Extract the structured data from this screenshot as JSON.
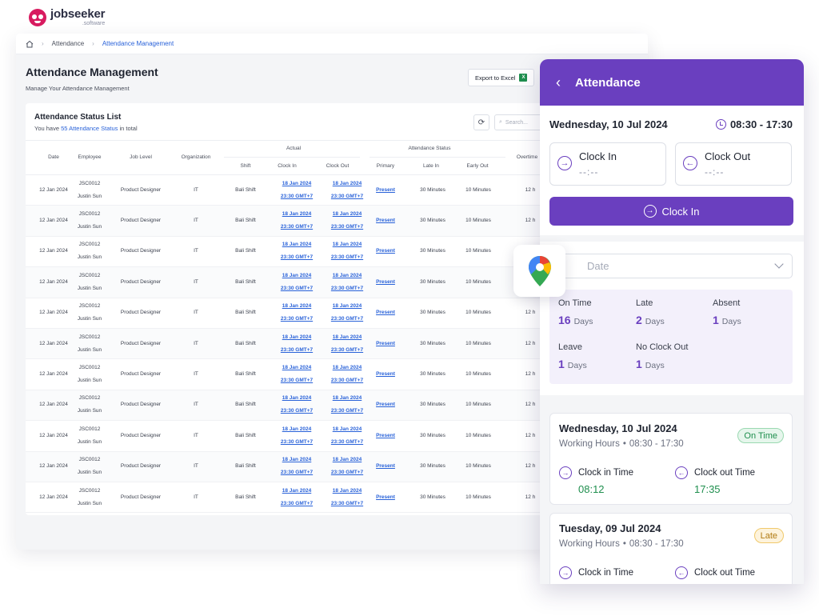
{
  "brand": {
    "name": "jobseeker",
    "sub": ".software"
  },
  "breadcrumb": {
    "items": [
      "Attendance",
      "Attendance Management"
    ]
  },
  "page": {
    "title": "Attendance Management",
    "subtitle": "Manage Your Attendance Management"
  },
  "toolbar": {
    "export_label": "Export to Excel",
    "search_placeholder": "Search..."
  },
  "list": {
    "title": "Attendance Status List",
    "count_prefix": "You have",
    "count_link": "55 Attendance Status",
    "count_suffix": "in total"
  },
  "table": {
    "headers": {
      "date": "Date",
      "employee": "Employee",
      "job_level": "Job Level",
      "organization": "Organization",
      "actual": "Actual",
      "attendance_status": "Attendance Status",
      "overtime": "Overtime",
      "shift": "Shift",
      "clock_in": "Clock In",
      "clock_out": "Clock Out",
      "primary": "Primary",
      "late_in": "Late In",
      "early_out": "Early Out"
    },
    "rows": [
      {
        "date": "12 Jan 2024",
        "emp_id": "JSC0012",
        "emp_name": "Justin Sun",
        "job": "Product Designer",
        "org": "IT",
        "shift": "Bali Shift",
        "in_date": "18 Jan 2024",
        "in_time": "23:30 GMT+7",
        "out_date": "18 Jan 2024",
        "out_time": "23:30 GMT+7",
        "primary": "Present",
        "late": "30 Minutes",
        "early": "10 Minutes",
        "ot": "12 h"
      },
      {
        "date": "12 Jan 2024",
        "emp_id": "JSC0012",
        "emp_name": "Justin Sun",
        "job": "Product Designer",
        "org": "IT",
        "shift": "Bali Shift",
        "in_date": "18 Jan 2024",
        "in_time": "23:30 GMT+7",
        "out_date": "18 Jan 2024",
        "out_time": "23:30 GMT+7",
        "primary": "Present",
        "late": "30 Minutes",
        "early": "10 Minutes",
        "ot": "12 h"
      },
      {
        "date": "12 Jan 2024",
        "emp_id": "JSC0012",
        "emp_name": "Justin Sun",
        "job": "Product Designer",
        "org": "IT",
        "shift": "Bali Shift",
        "in_date": "18 Jan 2024",
        "in_time": "23:30 GMT+7",
        "out_date": "18 Jan 2024",
        "out_time": "23:30 GMT+7",
        "primary": "Present",
        "late": "30 Minutes",
        "early": "10 Minutes",
        "ot": "12 h"
      },
      {
        "date": "12 Jan 2024",
        "emp_id": "JSC0012",
        "emp_name": "Justin Sun",
        "job": "Product Designer",
        "org": "IT",
        "shift": "Bali Shift",
        "in_date": "18 Jan 2024",
        "in_time": "23:30 GMT+7",
        "out_date": "18 Jan 2024",
        "out_time": "23:30 GMT+7",
        "primary": "Present",
        "late": "30 Minutes",
        "early": "10 Minutes",
        "ot": "12 h"
      },
      {
        "date": "12 Jan 2024",
        "emp_id": "JSC0012",
        "emp_name": "Justin Sun",
        "job": "Product Designer",
        "org": "IT",
        "shift": "Bali Shift",
        "in_date": "18 Jan 2024",
        "in_time": "23:30 GMT+7",
        "out_date": "18 Jan 2024",
        "out_time": "23:30 GMT+7",
        "primary": "Present",
        "late": "30 Minutes",
        "early": "10 Minutes",
        "ot": "12 h"
      },
      {
        "date": "12 Jan 2024",
        "emp_id": "JSC0012",
        "emp_name": "Justin Sun",
        "job": "Product Designer",
        "org": "IT",
        "shift": "Bali Shift",
        "in_date": "18 Jan 2024",
        "in_time": "23:30 GMT+7",
        "out_date": "18 Jan 2024",
        "out_time": "23:30 GMT+7",
        "primary": "Present",
        "late": "30 Minutes",
        "early": "10 Minutes",
        "ot": "12 h"
      },
      {
        "date": "12 Jan 2024",
        "emp_id": "JSC0012",
        "emp_name": "Justin Sun",
        "job": "Product Designer",
        "org": "IT",
        "shift": "Bali Shift",
        "in_date": "18 Jan 2024",
        "in_time": "23:30 GMT+7",
        "out_date": "18 Jan 2024",
        "out_time": "23:30 GMT+7",
        "primary": "Present",
        "late": "30 Minutes",
        "early": "10 Minutes",
        "ot": "12 h"
      },
      {
        "date": "12 Jan 2024",
        "emp_id": "JSC0012",
        "emp_name": "Justin Sun",
        "job": "Product Designer",
        "org": "IT",
        "shift": "Bali Shift",
        "in_date": "18 Jan 2024",
        "in_time": "23:30 GMT+7",
        "out_date": "18 Jan 2024",
        "out_time": "23:30 GMT+7",
        "primary": "Present",
        "late": "30 Minutes",
        "early": "10 Minutes",
        "ot": "12 h"
      },
      {
        "date": "12 Jan 2024",
        "emp_id": "JSC0012",
        "emp_name": "Justin Sun",
        "job": "Product Designer",
        "org": "IT",
        "shift": "Bali Shift",
        "in_date": "18 Jan 2024",
        "in_time": "23:30 GMT+7",
        "out_date": "18 Jan 2024",
        "out_time": "23:30 GMT+7",
        "primary": "Present",
        "late": "30 Minutes",
        "early": "10 Minutes",
        "ot": "12 h"
      },
      {
        "date": "12 Jan 2024",
        "emp_id": "JSC0012",
        "emp_name": "Justin Sun",
        "job": "Product Designer",
        "org": "IT",
        "shift": "Bali Shift",
        "in_date": "18 Jan 2024",
        "in_time": "23:30 GMT+7",
        "out_date": "18 Jan 2024",
        "out_time": "23:30 GMT+7",
        "primary": "Present",
        "late": "30 Minutes",
        "early": "10 Minutes",
        "ot": "12 h"
      },
      {
        "date": "12 Jan 2024",
        "emp_id": "JSC0012",
        "emp_name": "Justin Sun",
        "job": "Product Designer",
        "org": "IT",
        "shift": "Bali Shift",
        "in_date": "18 Jan 2024",
        "in_time": "23:30 GMT+7",
        "out_date": "18 Jan 2024",
        "out_time": "23:30 GMT+7",
        "primary": "Present",
        "late": "30 Minutes",
        "early": "10 Minutes",
        "ot": "12 h"
      }
    ]
  },
  "attendance": {
    "title": "Attendance",
    "today": "Wednesday, 10 Jul 2024",
    "shift_hours": "08:30 - 17:30",
    "clock_in_label": "Clock In",
    "clock_in_value": "--:--",
    "clock_out_label": "Clock Out",
    "clock_out_value": "--:--",
    "clock_in_button": "Clock In",
    "date_placeholder": "Date",
    "stats": [
      {
        "label": "On Time",
        "value": "16",
        "unit": "Days"
      },
      {
        "label": "Late",
        "value": "2",
        "unit": "Days"
      },
      {
        "label": "Absent",
        "value": "1",
        "unit": "Days"
      },
      {
        "label": "Leave",
        "value": "1",
        "unit": "Days"
      },
      {
        "label": "No Clock Out",
        "value": "1",
        "unit": "Days"
      }
    ],
    "history": [
      {
        "date": "Wednesday, 10 Jul 2024",
        "hours_label": "Working Hours",
        "hours": "08:30 - 17:30",
        "status": "On Time",
        "in_label": "Clock in Time",
        "in_value": "08:12",
        "out_label": "Clock out Time",
        "out_value": "17:35"
      },
      {
        "date": "Tuesday, 09 Jul 2024",
        "hours_label": "Working Hours",
        "hours": "08:30 - 17:30",
        "status": "Late",
        "in_label": "Clock in Time",
        "out_label": "Clock out Time"
      }
    ]
  },
  "colors": {
    "primary": "#6a3fbf",
    "link": "#2962d9",
    "success": "#1f8f4e",
    "warning": "#b07a12"
  }
}
